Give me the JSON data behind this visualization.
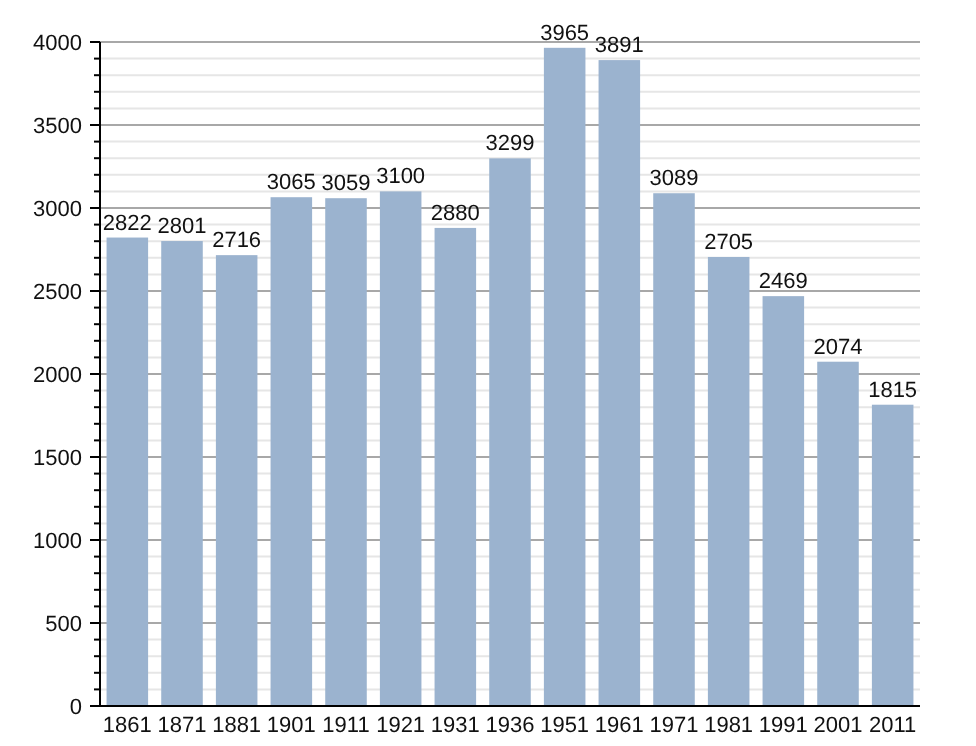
{
  "chart_data": {
    "type": "bar",
    "categories": [
      "1861",
      "1871",
      "1881",
      "1901",
      "1911",
      "1921",
      "1931",
      "1936",
      "1951",
      "1961",
      "1971",
      "1981",
      "1991",
      "2001",
      "2011"
    ],
    "values": [
      2822,
      2801,
      2716,
      3065,
      3059,
      3100,
      2880,
      3299,
      3965,
      3891,
      3089,
      2705,
      2469,
      2074,
      1815
    ],
    "color": "#9bb3cf",
    "data_labels": true,
    "grid": "y",
    "ylim": [
      0,
      4000
    ],
    "yticks": [
      0,
      {
        "value": 100,
        "label": null
      },
      {
        "value": 200,
        "label": null
      },
      {
        "value": 300,
        "label": null
      },
      {
        "value": 400,
        "label": null
      },
      500,
      {
        "value": 600,
        "label": null
      },
      {
        "value": 700,
        "label": null
      },
      {
        "value": 800,
        "label": null
      },
      {
        "value": 900,
        "label": null
      },
      1000,
      {
        "value": 1100,
        "label": null
      },
      {
        "value": 1200,
        "label": null
      },
      {
        "value": 1300,
        "label": null
      },
      {
        "value": 1400,
        "label": null
      },
      1500,
      {
        "value": 1600,
        "label": null
      },
      {
        "value": 1700,
        "label": null
      },
      {
        "value": 1800,
        "label": null
      },
      {
        "value": 1900,
        "label": null
      },
      2000,
      {
        "value": 2100,
        "label": null
      },
      {
        "value": 2200,
        "label": null
      },
      {
        "value": 2300,
        "label": null
      },
      {
        "value": 2400,
        "label": null
      },
      2500,
      {
        "value": 2600,
        "label": null
      },
      {
        "value": 2700,
        "label": null
      },
      {
        "value": 2800,
        "label": null
      },
      {
        "value": 2900,
        "label": null
      },
      3000,
      {
        "value": 3100,
        "label": null
      },
      {
        "value": 3200,
        "label": null
      },
      {
        "value": 3300,
        "label": null
      },
      {
        "value": 3400,
        "label": null
      },
      3500,
      {
        "value": 3600,
        "label": null
      },
      {
        "value": 3700,
        "label": null
      },
      {
        "value": 3800,
        "label": null
      },
      {
        "value": 3900,
        "label": null
      },
      4000
    ]
  }
}
